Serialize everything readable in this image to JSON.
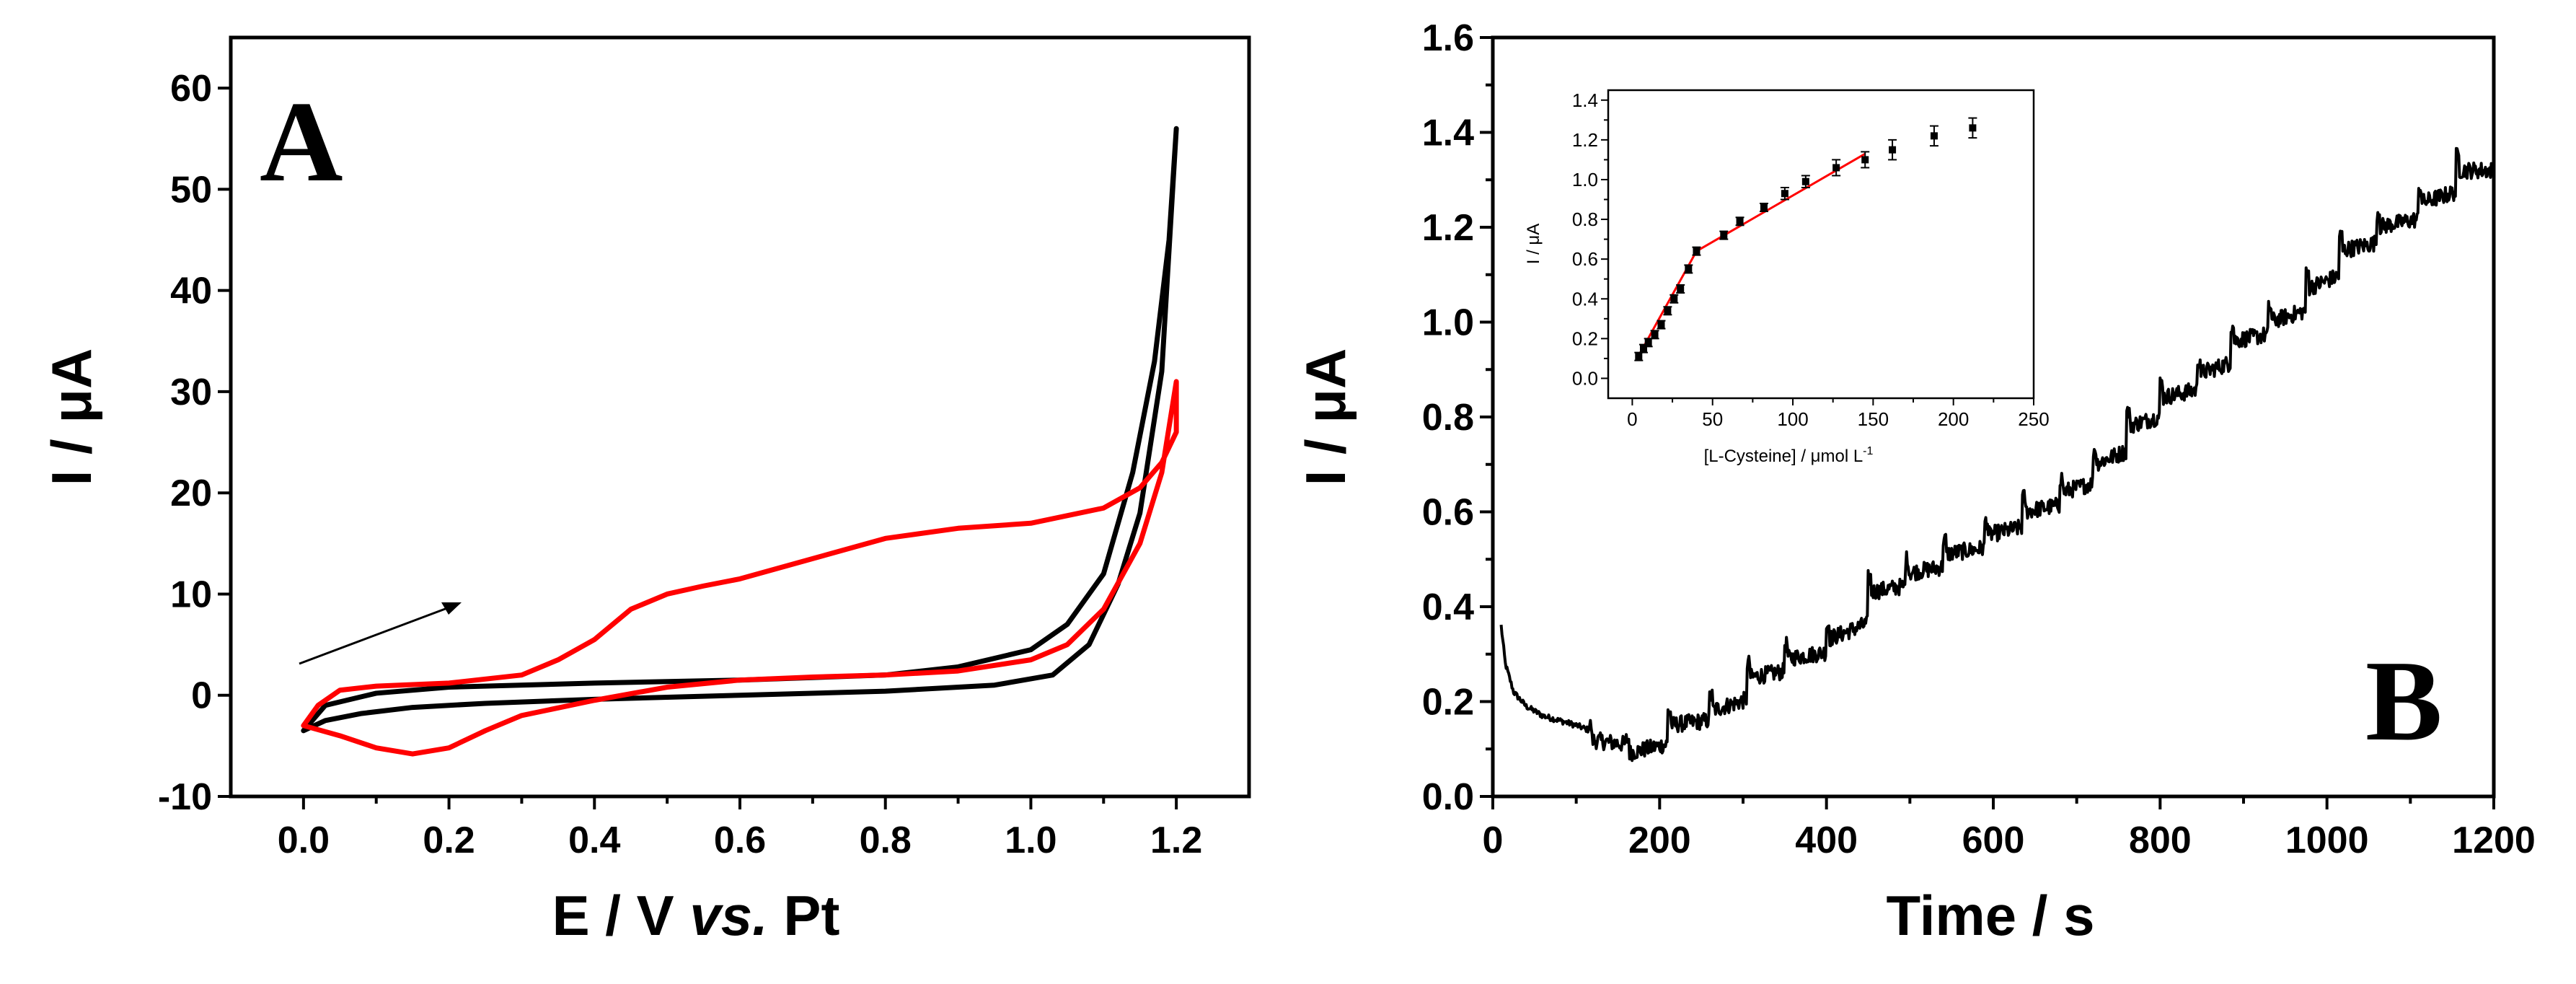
{
  "chart_data": [
    {
      "panel": "A",
      "type": "line",
      "panel_label": "A",
      "xlabel_main": "E / V ",
      "xlabel_italic": "vs.",
      "xlabel_end": " Pt",
      "ylabel": "I / μA",
      "xlim": [
        -0.1,
        1.3
      ],
      "ylim": [
        -10,
        65
      ],
      "xticks": [
        "0.0",
        "0.2",
        "0.4",
        "0.6",
        "0.8",
        "1.0",
        "1.2"
      ],
      "yticks": [
        "-10",
        "0",
        "10",
        "20",
        "30",
        "40",
        "50",
        "60"
      ],
      "xtick_values": [
        0.0,
        0.2,
        0.4,
        0.6,
        0.8,
        1.0,
        1.2
      ],
      "ytick_values": [
        -10,
        0,
        10,
        20,
        30,
        40,
        50,
        60
      ],
      "annotation": "arrow indicating anodic scan direction",
      "series": [
        {
          "name": "black cycle",
          "color": "#000000",
          "forward": [
            [
              0.0,
              -3.5
            ],
            [
              0.03,
              -2.5
            ],
            [
              0.08,
              -1.8
            ],
            [
              0.15,
              -1.2
            ],
            [
              0.25,
              -0.8
            ],
            [
              0.4,
              -0.4
            ],
            [
              0.6,
              0.0
            ],
            [
              0.8,
              0.4
            ],
            [
              0.95,
              1.0
            ],
            [
              1.03,
              2.0
            ],
            [
              1.08,
              5.0
            ],
            [
              1.12,
              11.0
            ],
            [
              1.15,
              18.0
            ],
            [
              1.18,
              32.0
            ],
            [
              1.2,
              56.0
            ]
          ],
          "reverse": [
            [
              1.2,
              56.0
            ],
            [
              1.19,
              45.0
            ],
            [
              1.17,
              33.0
            ],
            [
              1.14,
              22.0
            ],
            [
              1.1,
              12.0
            ],
            [
              1.05,
              7.0
            ],
            [
              1.0,
              4.5
            ],
            [
              0.9,
              2.8
            ],
            [
              0.8,
              2.0
            ],
            [
              0.6,
              1.5
            ],
            [
              0.4,
              1.2
            ],
            [
              0.2,
              0.8
            ],
            [
              0.1,
              0.2
            ],
            [
              0.03,
              -1.0
            ],
            [
              0.0,
              -3.5
            ]
          ]
        },
        {
          "name": "red cycle",
          "color": "#ff0000",
          "forward": [
            [
              0.0,
              -3.0
            ],
            [
              0.05,
              -4.0
            ],
            [
              0.1,
              -5.2
            ],
            [
              0.15,
              -5.8
            ],
            [
              0.2,
              -5.2
            ],
            [
              0.25,
              -3.5
            ],
            [
              0.3,
              -2.0
            ],
            [
              0.4,
              -0.5
            ],
            [
              0.5,
              0.8
            ],
            [
              0.6,
              1.5
            ],
            [
              0.7,
              1.8
            ],
            [
              0.8,
              2.0
            ],
            [
              0.9,
              2.4
            ],
            [
              1.0,
              3.5
            ],
            [
              1.05,
              5.0
            ],
            [
              1.1,
              8.5
            ],
            [
              1.15,
              15.0
            ],
            [
              1.18,
              22.0
            ],
            [
              1.2,
              31.0
            ]
          ],
          "reverse": [
            [
              1.2,
              31.0
            ],
            [
              1.2,
              26.0
            ],
            [
              1.18,
              23.0
            ],
            [
              1.15,
              20.5
            ],
            [
              1.1,
              18.5
            ],
            [
              1.0,
              17.0
            ],
            [
              0.9,
              16.5
            ],
            [
              0.8,
              15.5
            ],
            [
              0.7,
              13.5
            ],
            [
              0.6,
              11.5
            ],
            [
              0.55,
              10.8
            ],
            [
              0.5,
              10.0
            ],
            [
              0.45,
              8.5
            ],
            [
              0.4,
              5.5
            ],
            [
              0.35,
              3.5
            ],
            [
              0.3,
              2.0
            ],
            [
              0.2,
              1.2
            ],
            [
              0.1,
              0.9
            ],
            [
              0.05,
              0.5
            ],
            [
              0.02,
              -1.0
            ],
            [
              0.0,
              -3.0
            ]
          ]
        }
      ]
    },
    {
      "panel": "B",
      "type": "line",
      "panel_label": "B",
      "xlabel": "Time / s",
      "ylabel": "I / μA",
      "xlim": [
        0,
        1200
      ],
      "ylim": [
        0.0,
        1.6
      ],
      "xticks": [
        "0",
        "200",
        "400",
        "600",
        "800",
        "1000",
        "1200"
      ],
      "yticks": [
        "0.0",
        "0.2",
        "0.4",
        "0.6",
        "0.8",
        "1.0",
        "1.2",
        "1.4",
        "1.6"
      ],
      "xtick_values": [
        0,
        200,
        400,
        600,
        800,
        1000,
        1200
      ],
      "ytick_values": [
        0.0,
        0.2,
        0.4,
        0.6,
        0.8,
        1.0,
        1.2,
        1.4,
        1.6
      ],
      "series": [
        {
          "name": "amperometric response",
          "color": "#000000",
          "baseline": [
            [
              10,
              0.36
            ],
            [
              15,
              0.28
            ],
            [
              25,
              0.22
            ],
            [
              40,
              0.19
            ],
            [
              60,
              0.17
            ],
            [
              80,
              0.16
            ],
            [
              100,
              0.15
            ],
            [
              115,
              0.14
            ]
          ],
          "step_times": [
            115,
            160,
            210,
            260,
            305,
            350,
            400,
            450,
            495,
            540,
            590,
            635,
            680,
            720,
            760,
            800,
            845,
            885,
            930,
            975,
            1015,
            1060,
            1110,
            1155
          ],
          "step_levels": [
            0.12,
            0.09,
            0.15,
            0.18,
            0.25,
            0.29,
            0.33,
            0.43,
            0.47,
            0.51,
            0.55,
            0.6,
            0.64,
            0.7,
            0.78,
            0.84,
            0.89,
            0.96,
            1.0,
            1.07,
            1.15,
            1.2,
            1.25,
            1.32
          ],
          "end_time": 1200
        }
      ],
      "inset": {
        "type": "scatter",
        "xlabel": "[L-Cysteine] / μmol L",
        "xlabel_sup": "-1",
        "ylabel": "I / μA",
        "xlim": [
          -15,
          250
        ],
        "ylim": [
          -0.1,
          1.45
        ],
        "xticks": [
          "0",
          "50",
          "100",
          "150",
          "200",
          "250"
        ],
        "yticks": [
          "0.0",
          "0.2",
          "0.4",
          "0.6",
          "0.8",
          "1.0",
          "1.2",
          "1.4"
        ],
        "xtick_values": [
          0,
          50,
          100,
          150,
          200,
          250
        ],
        "ytick_values": [
          0.0,
          0.2,
          0.4,
          0.6,
          0.8,
          1.0,
          1.2,
          1.4
        ],
        "points": [
          {
            "x": 4,
            "y": 0.11,
            "err": 0.02
          },
          {
            "x": 7,
            "y": 0.15,
            "err": 0.02
          },
          {
            "x": 10,
            "y": 0.18,
            "err": 0.02
          },
          {
            "x": 14,
            "y": 0.22,
            "err": 0.02
          },
          {
            "x": 18,
            "y": 0.27,
            "err": 0.02
          },
          {
            "x": 22,
            "y": 0.34,
            "err": 0.02
          },
          {
            "x": 26,
            "y": 0.4,
            "err": 0.02
          },
          {
            "x": 30,
            "y": 0.45,
            "err": 0.02
          },
          {
            "x": 35,
            "y": 0.55,
            "err": 0.02
          },
          {
            "x": 40,
            "y": 0.64,
            "err": 0.02
          },
          {
            "x": 57,
            "y": 0.72,
            "err": 0.02
          },
          {
            "x": 67,
            "y": 0.79,
            "err": 0.02
          },
          {
            "x": 82,
            "y": 0.86,
            "err": 0.02
          },
          {
            "x": 95,
            "y": 0.93,
            "err": 0.03
          },
          {
            "x": 108,
            "y": 0.99,
            "err": 0.03
          },
          {
            "x": 127,
            "y": 1.06,
            "err": 0.04
          },
          {
            "x": 145,
            "y": 1.1,
            "err": 0.04
          },
          {
            "x": 162,
            "y": 1.15,
            "err": 0.05
          },
          {
            "x": 188,
            "y": 1.22,
            "err": 0.05
          },
          {
            "x": 212,
            "y": 1.26,
            "err": 0.05
          }
        ],
        "fit_lines": [
          {
            "color": "#ff0000",
            "x": [
              3,
              40
            ],
            "y": [
              0.1,
              0.64
            ]
          },
          {
            "color": "#ff0000",
            "x": [
              40,
              145
            ],
            "y": [
              0.64,
              1.13
            ]
          }
        ]
      }
    }
  ]
}
